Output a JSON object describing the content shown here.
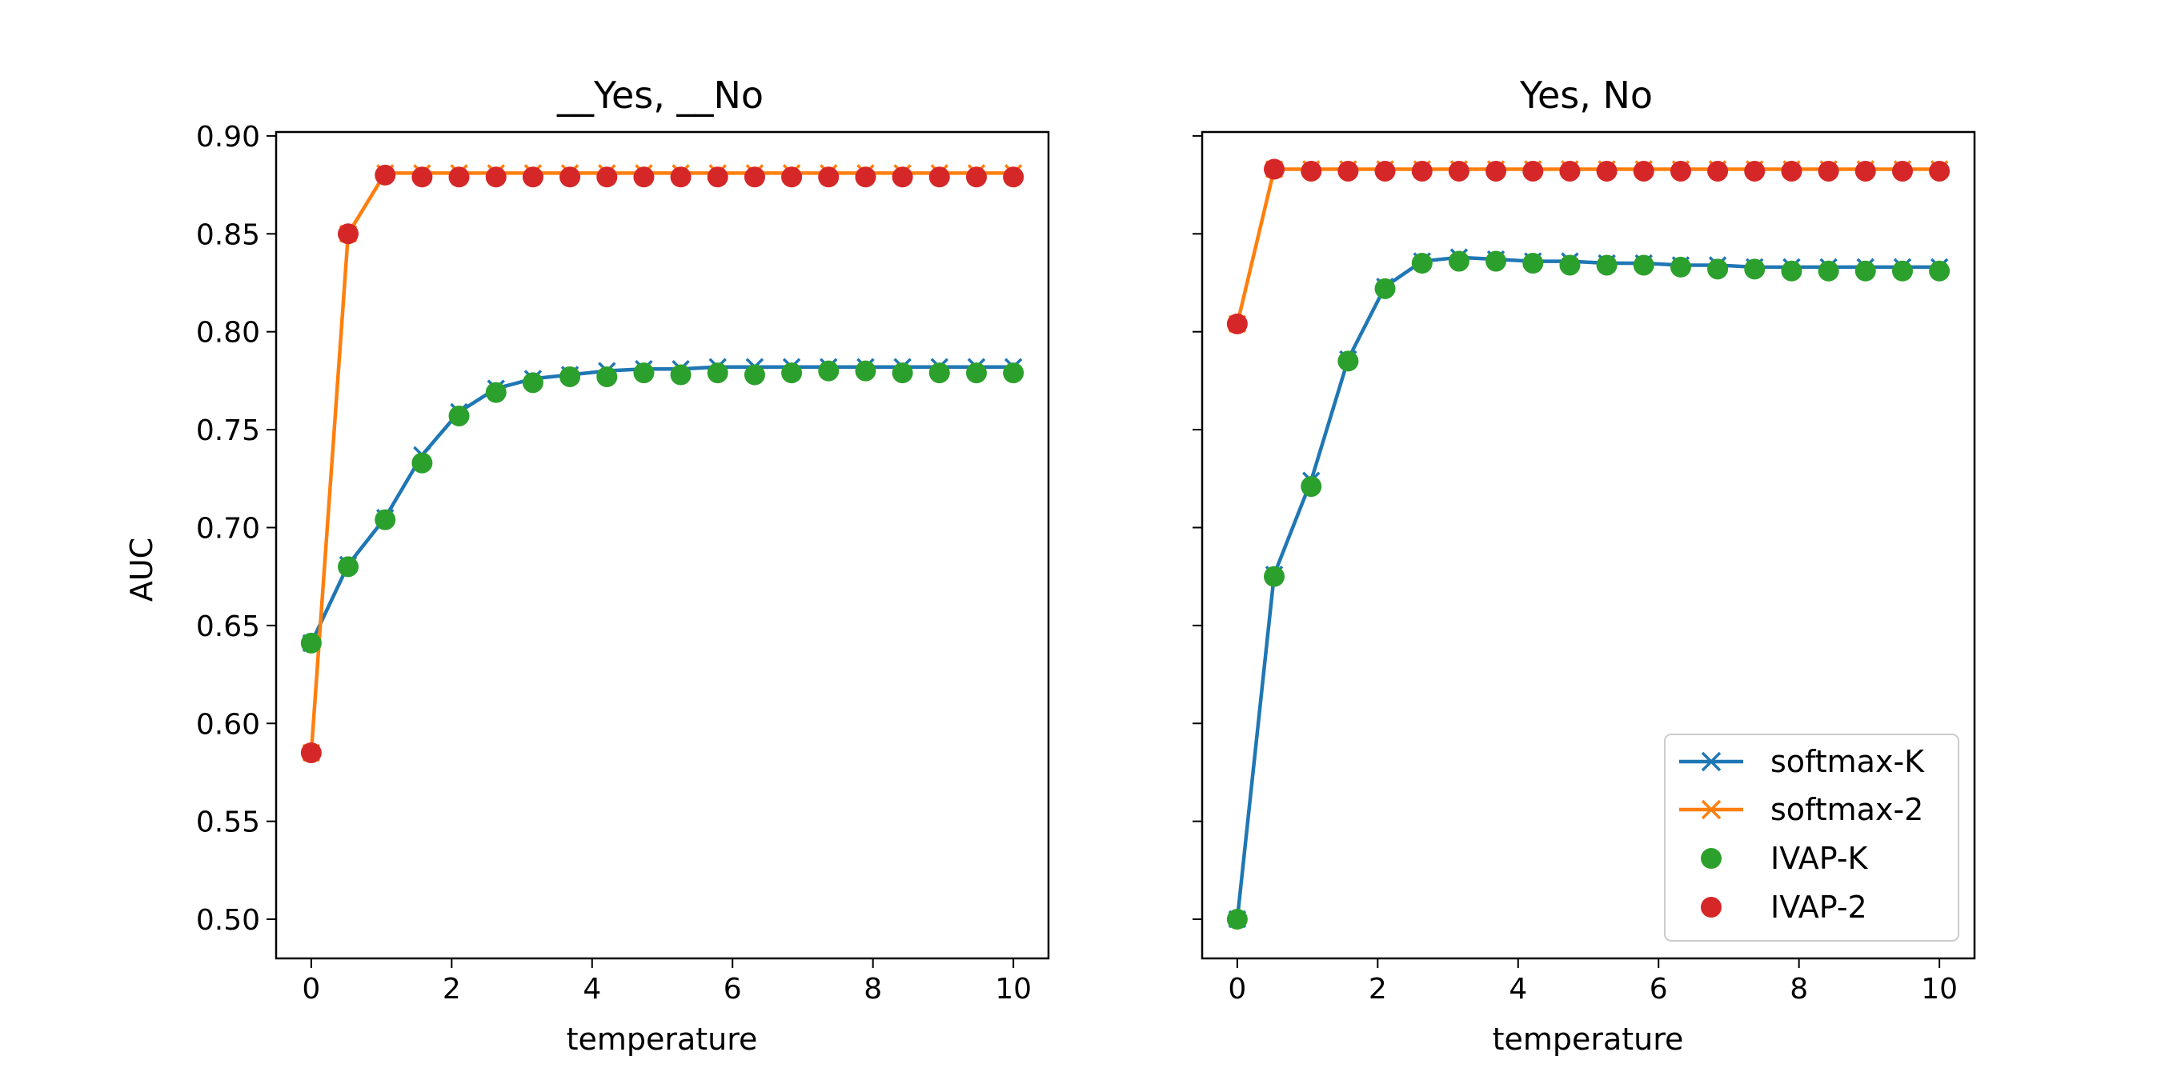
{
  "colors": {
    "softmax-K": "#1f77b4",
    "softmax-2": "#ff7f0e",
    "IVAP-K": "#2ca02c",
    "IVAP-2": "#d62728"
  },
  "chart_data": [
    {
      "type": "line",
      "title": "__Yes, __No",
      "xlabel": "temperature",
      "ylabel": "AUC",
      "xlim": [
        -0.5,
        10.5
      ],
      "ylim": [
        0.48,
        0.902
      ],
      "xticks": [
        0,
        2,
        4,
        6,
        8,
        10
      ],
      "xtick_labels": [
        "0",
        "2",
        "4",
        "6",
        "8",
        "10"
      ],
      "yticks": [
        0.5,
        0.55,
        0.6,
        0.65,
        0.7,
        0.75,
        0.8,
        0.85,
        0.9
      ],
      "ytick_labels": [
        "0.50",
        "0.55",
        "0.60",
        "0.65",
        "0.70",
        "0.75",
        "0.80",
        "0.85",
        "0.90"
      ],
      "x": [
        0,
        0.526,
        1.053,
        1.579,
        2.105,
        2.632,
        3.158,
        3.684,
        4.211,
        4.737,
        5.263,
        5.789,
        6.316,
        6.842,
        7.368,
        7.895,
        8.421,
        8.947,
        9.474,
        10
      ],
      "series": [
        {
          "name": "softmax-K",
          "style": "line-x",
          "values": [
            0.641,
            0.681,
            0.705,
            0.737,
            0.759,
            0.771,
            0.776,
            0.778,
            0.78,
            0.781,
            0.781,
            0.782,
            0.782,
            0.782,
            0.782,
            0.782,
            0.782,
            0.782,
            0.782,
            0.782
          ]
        },
        {
          "name": "softmax-2",
          "style": "line-x",
          "values": [
            0.585,
            0.85,
            0.881,
            0.881,
            0.881,
            0.881,
            0.881,
            0.881,
            0.881,
            0.881,
            0.881,
            0.881,
            0.881,
            0.881,
            0.881,
            0.881,
            0.881,
            0.881,
            0.881,
            0.881
          ]
        },
        {
          "name": "IVAP-K",
          "style": "dot",
          "values": [
            0.641,
            0.68,
            0.704,
            0.733,
            0.757,
            0.769,
            0.774,
            0.777,
            0.777,
            0.779,
            0.778,
            0.779,
            0.778,
            0.779,
            0.78,
            0.78,
            0.779,
            0.779,
            0.779,
            0.779
          ]
        },
        {
          "name": "IVAP-2",
          "style": "dot",
          "values": [
            0.585,
            0.85,
            0.88,
            0.879,
            0.879,
            0.879,
            0.879,
            0.879,
            0.879,
            0.879,
            0.879,
            0.879,
            0.879,
            0.879,
            0.879,
            0.879,
            0.879,
            0.879,
            0.879,
            0.879
          ]
        }
      ]
    },
    {
      "type": "line",
      "title": "Yes, No",
      "xlabel": "temperature",
      "ylabel": "",
      "xlim": [
        -0.5,
        10.5
      ],
      "ylim": [
        0.48,
        0.902
      ],
      "xticks": [
        0,
        2,
        4,
        6,
        8,
        10
      ],
      "xtick_labels": [
        "0",
        "2",
        "4",
        "6",
        "8",
        "10"
      ],
      "yticks": [
        0.5,
        0.55,
        0.6,
        0.65,
        0.7,
        0.75,
        0.8,
        0.85,
        0.9
      ],
      "ytick_labels": [],
      "legend": "lower-right",
      "x": [
        0,
        0.526,
        1.053,
        1.579,
        2.105,
        2.632,
        3.158,
        3.684,
        4.211,
        4.737,
        5.263,
        5.789,
        6.316,
        6.842,
        7.368,
        7.895,
        8.421,
        8.947,
        9.474,
        10
      ],
      "series": [
        {
          "name": "softmax-K",
          "style": "line-x",
          "values": [
            0.5,
            0.676,
            0.724,
            0.786,
            0.823,
            0.836,
            0.838,
            0.837,
            0.836,
            0.836,
            0.835,
            0.835,
            0.834,
            0.834,
            0.833,
            0.833,
            0.833,
            0.833,
            0.833,
            0.833
          ]
        },
        {
          "name": "softmax-2",
          "style": "line-x",
          "values": [
            0.804,
            0.883,
            0.883,
            0.883,
            0.883,
            0.883,
            0.883,
            0.883,
            0.883,
            0.883,
            0.883,
            0.883,
            0.883,
            0.883,
            0.883,
            0.883,
            0.883,
            0.883,
            0.883,
            0.883
          ]
        },
        {
          "name": "IVAP-K",
          "style": "dot",
          "values": [
            0.5,
            0.675,
            0.721,
            0.785,
            0.822,
            0.835,
            0.836,
            0.836,
            0.835,
            0.834,
            0.834,
            0.834,
            0.833,
            0.832,
            0.832,
            0.831,
            0.831,
            0.831,
            0.831,
            0.831
          ]
        },
        {
          "name": "IVAP-2",
          "style": "dot",
          "values": [
            0.804,
            0.883,
            0.882,
            0.882,
            0.882,
            0.882,
            0.882,
            0.882,
            0.882,
            0.882,
            0.882,
            0.882,
            0.882,
            0.882,
            0.882,
            0.882,
            0.882,
            0.882,
            0.882,
            0.882
          ]
        }
      ]
    }
  ]
}
